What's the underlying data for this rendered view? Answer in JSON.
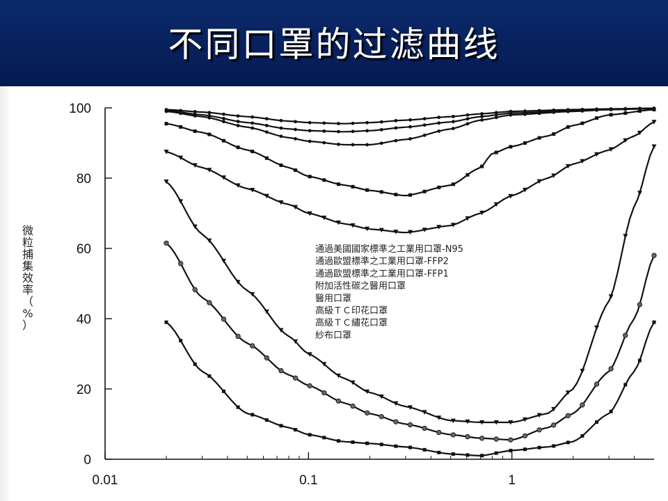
{
  "slide": {
    "title": "不同口罩的过滤曲线"
  },
  "chart_data": {
    "type": "line",
    "title": "",
    "xlabel": "",
    "ylabel": "微粒捕集效率（%）",
    "ylabel_chars": [
      "微",
      "粒",
      "捕",
      "集",
      "效",
      "率",
      "（",
      "%",
      "）"
    ],
    "x_scale": "log",
    "xlim": [
      0.01,
      5
    ],
    "ylim": [
      0,
      100
    ],
    "x_ticks": [
      0.01,
      0.1,
      1
    ],
    "x_tick_labels": [
      "0.01",
      "0.1",
      "1"
    ],
    "y_ticks": [
      0,
      20,
      40,
      60,
      80,
      100
    ],
    "y_tick_labels": [
      "0",
      "20",
      "40",
      "60",
      "80",
      "100"
    ],
    "grid": false,
    "legend_position": "center",
    "legend": [
      "通過美國國家標準之工業用口罩-N95",
      "通過歐盟標準之工業用口罩-FFP2",
      "通過歐盟標準之工業用口罩-FFP1",
      "附加活性碳之醫用口罩",
      "醫用口罩",
      "高級ＴＣ印花口罩",
      "高級ＴＣ繡花口罩",
      "紗布口罩"
    ],
    "series": [
      {
        "name": "通過美國國家標準之工業用口罩-N95",
        "x": [
          0.02,
          0.03,
          0.05,
          0.08,
          0.1,
          0.15,
          0.2,
          0.3,
          0.5,
          0.7,
          1.0,
          2.0,
          3.0,
          5.0
        ],
        "y": [
          99.5,
          98.8,
          97.5,
          96.2,
          95.8,
          95.5,
          95.8,
          96.5,
          97.5,
          98.3,
          99.0,
          99.5,
          99.7,
          99.9
        ]
      },
      {
        "name": "通過歐盟標準之工業用口罩-FFP2",
        "x": [
          0.02,
          0.03,
          0.05,
          0.08,
          0.1,
          0.15,
          0.2,
          0.3,
          0.5,
          0.7,
          1.0,
          2.0,
          3.0,
          5.0
        ],
        "y": [
          99.3,
          98.0,
          95.8,
          94.0,
          93.5,
          93.2,
          93.5,
          94.5,
          96.0,
          97.5,
          98.5,
          99.2,
          99.5,
          99.8
        ]
      },
      {
        "name": "通過歐盟標準之工業用口罩-FFP1",
        "x": [
          0.02,
          0.03,
          0.05,
          0.08,
          0.1,
          0.15,
          0.2,
          0.3,
          0.5,
          0.7,
          1.0,
          2.0,
          3.0,
          5.0
        ],
        "y": [
          99.0,
          97.5,
          94.5,
          91.5,
          90.5,
          89.5,
          89.5,
          91.0,
          94.0,
          96.5,
          98.0,
          99.0,
          99.5,
          99.8
        ]
      },
      {
        "name": "附加活性碳之醫用口罩",
        "x": [
          0.02,
          0.03,
          0.05,
          0.08,
          0.1,
          0.15,
          0.2,
          0.3,
          0.5,
          0.7,
          0.8,
          1.0,
          1.5,
          2.0,
          3.0,
          5.0
        ],
        "y": [
          95.5,
          93.0,
          88.0,
          83.0,
          80.5,
          78.0,
          76.5,
          75.0,
          78.0,
          83.0,
          87.0,
          89.0,
          92.0,
          95.0,
          98.0,
          99.5
        ]
      },
      {
        "name": "醫用口罩",
        "x": [
          0.02,
          0.03,
          0.05,
          0.08,
          0.1,
          0.15,
          0.2,
          0.3,
          0.5,
          0.7,
          1.0,
          1.5,
          2.0,
          3.0,
          4.0,
          5.0
        ],
        "y": [
          87.5,
          83.0,
          77.0,
          72.5,
          70.0,
          67.0,
          65.5,
          64.5,
          66.5,
          70.0,
          75.0,
          80.0,
          84.0,
          88.0,
          92.0,
          96.0
        ]
      },
      {
        "name": "高級ＴＣ印花口罩",
        "x": [
          0.02,
          0.03,
          0.05,
          0.08,
          0.1,
          0.15,
          0.2,
          0.3,
          0.5,
          0.7,
          1.0,
          1.5,
          2.0,
          3.0,
          4.0,
          5.0
        ],
        "y": [
          79.0,
          64.0,
          48.0,
          35.0,
          30.0,
          23.0,
          19.0,
          15.0,
          11.0,
          10.5,
          10.5,
          13.0,
          20.0,
          45.0,
          72.0,
          89.0
        ]
      },
      {
        "name": "高級ＴＣ繡花口罩",
        "x": [
          0.02,
          0.03,
          0.05,
          0.08,
          0.1,
          0.15,
          0.2,
          0.3,
          0.5,
          0.7,
          1.0,
          1.5,
          2.0,
          3.0,
          4.0,
          5.0
        ],
        "y": [
          61.5,
          46.0,
          33.0,
          24.0,
          21.0,
          16.0,
          13.0,
          10.0,
          7.0,
          6.0,
          5.5,
          9.0,
          13.0,
          25.0,
          40.0,
          58.0
        ]
      },
      {
        "name": "紗布口罩",
        "x": [
          0.02,
          0.03,
          0.05,
          0.08,
          0.1,
          0.15,
          0.2,
          0.3,
          0.5,
          0.7,
          1.0,
          1.5,
          2.0,
          3.0,
          4.0,
          5.0
        ],
        "y": [
          39.0,
          25.0,
          13.0,
          9.0,
          7.0,
          5.0,
          4.5,
          3.5,
          1.5,
          1.0,
          2.5,
          3.5,
          5.0,
          13.0,
          25.0,
          39.0
        ]
      }
    ]
  }
}
